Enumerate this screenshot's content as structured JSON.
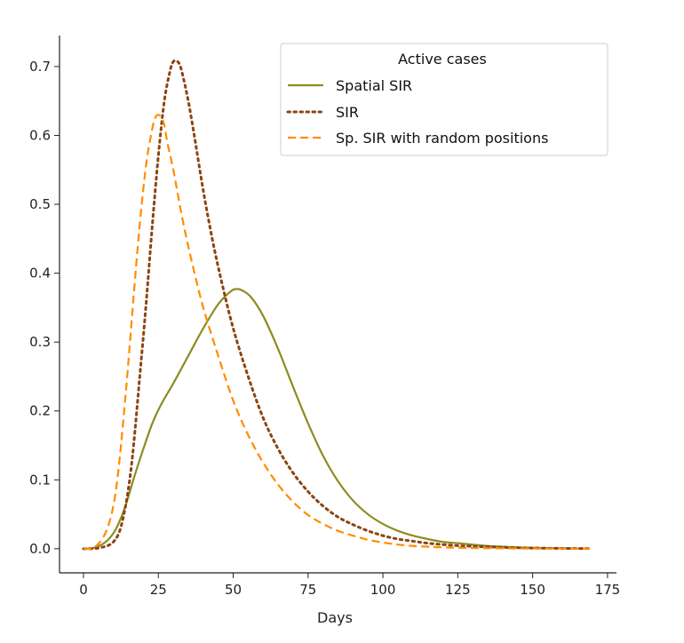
{
  "chart_data": {
    "type": "line",
    "title": "",
    "xlabel": "Days",
    "ylabel": "",
    "xlim": [
      -8,
      178
    ],
    "ylim": [
      -0.035,
      0.745
    ],
    "xticks": [
      0,
      25,
      50,
      75,
      100,
      125,
      150,
      175
    ],
    "xtick_labels": [
      "0",
      "25",
      "50",
      "75",
      "100",
      "125",
      "150",
      "175"
    ],
    "yticks": [
      0.0,
      0.1,
      0.2,
      0.3,
      0.4,
      0.5,
      0.6,
      0.7
    ],
    "ytick_labels": [
      "0.0",
      "0.1",
      "0.2",
      "0.3",
      "0.4",
      "0.5",
      "0.6",
      "0.7"
    ],
    "grid": false,
    "legend": {
      "title": "Active cases",
      "placement": "top-right"
    },
    "series": [
      {
        "name": "Spatial SIR",
        "color": "#8c8c23",
        "style": "solid",
        "x": [
          0,
          4,
          8,
          11,
          14,
          17,
          20,
          23,
          26,
          30,
          35,
          40,
          45,
          49,
          51,
          53,
          56,
          60,
          65,
          70,
          75,
          80,
          85,
          90,
          95,
          100,
          105,
          110,
          115,
          120,
          125,
          130,
          135,
          140,
          145,
          150,
          155,
          160,
          165,
          169
        ],
        "y": [
          0.0,
          0.002,
          0.012,
          0.03,
          0.062,
          0.105,
          0.145,
          0.182,
          0.21,
          0.24,
          0.28,
          0.32,
          0.355,
          0.373,
          0.377,
          0.375,
          0.365,
          0.338,
          0.29,
          0.235,
          0.182,
          0.135,
          0.098,
          0.07,
          0.05,
          0.036,
          0.026,
          0.019,
          0.014,
          0.01,
          0.008,
          0.006,
          0.004,
          0.003,
          0.002,
          0.0015,
          0.001,
          0.0007,
          0.0004,
          0.0002
        ]
      },
      {
        "name": "SIR",
        "color": "#8b4513",
        "style": "dotted",
        "x": [
          0,
          5,
          10,
          13,
          16,
          19,
          21,
          23,
          25,
          27,
          29,
          30,
          31,
          32,
          33,
          35,
          37,
          40,
          43,
          46,
          50,
          55,
          60,
          65,
          70,
          75,
          80,
          85,
          90,
          95,
          100,
          105,
          110,
          115,
          120,
          125,
          130,
          140,
          150,
          160,
          169
        ],
        "y": [
          0.0,
          0.001,
          0.01,
          0.04,
          0.12,
          0.26,
          0.36,
          0.47,
          0.57,
          0.65,
          0.695,
          0.707,
          0.708,
          0.704,
          0.69,
          0.65,
          0.6,
          0.52,
          0.45,
          0.39,
          0.32,
          0.25,
          0.19,
          0.145,
          0.11,
          0.083,
          0.062,
          0.046,
          0.035,
          0.026,
          0.019,
          0.014,
          0.011,
          0.008,
          0.006,
          0.0045,
          0.0035,
          0.002,
          0.001,
          0.0005,
          0.0003
        ]
      },
      {
        "name": "Sp. SIR with random positions",
        "color": "#ff8c00",
        "style": "dashed",
        "x": [
          0,
          4,
          8,
          11,
          14,
          17,
          19,
          21,
          23,
          24,
          25,
          26,
          27,
          28,
          30,
          33,
          36,
          40,
          45,
          50,
          55,
          60,
          65,
          70,
          75,
          80,
          85,
          90,
          95,
          100,
          105,
          110,
          115,
          120,
          130,
          140,
          150,
          160,
          169
        ],
        "y": [
          0.0,
          0.003,
          0.03,
          0.09,
          0.22,
          0.38,
          0.48,
          0.56,
          0.61,
          0.626,
          0.63,
          0.626,
          0.615,
          0.59,
          0.55,
          0.48,
          0.42,
          0.35,
          0.28,
          0.215,
          0.165,
          0.125,
          0.093,
          0.068,
          0.049,
          0.036,
          0.026,
          0.019,
          0.013,
          0.009,
          0.006,
          0.004,
          0.003,
          0.002,
          0.001,
          0.0006,
          0.0003,
          0.0002,
          0.0001
        ]
      }
    ]
  }
}
